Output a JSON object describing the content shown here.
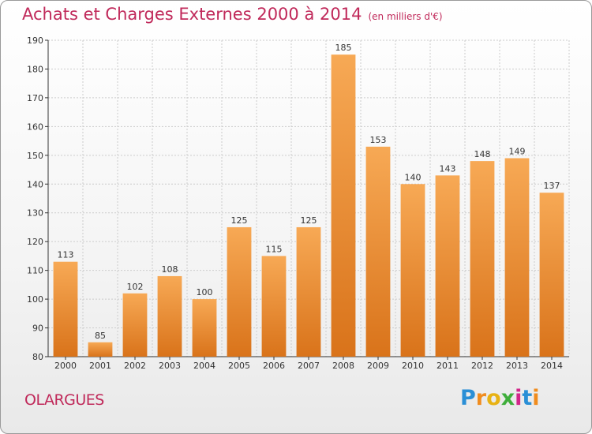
{
  "header": {
    "title": "Achats et Charges Externes 2000 à 2014",
    "subtitle": "(en milliers d'€)"
  },
  "footer": {
    "city": "OLARGUES",
    "logo_text": "Proxiti",
    "logo_letters": [
      {
        "ch": "P",
        "color": "#2a8fd6"
      },
      {
        "ch": "r",
        "color": "#f08c1e"
      },
      {
        "ch": "o",
        "color": "#e8b214"
      },
      {
        "ch": "x",
        "color": "#3fae3b"
      },
      {
        "ch": "i",
        "color": "#d3268a"
      },
      {
        "ch": "t",
        "color": "#2a8fd6"
      },
      {
        "ch": "i",
        "color": "#f08c1e"
      }
    ]
  },
  "colors": {
    "bar_top": "#f7a955",
    "bar_bottom": "#d9731a",
    "grid": "#cccccc",
    "axis": "#333333",
    "accent": "#c0295a"
  },
  "chart_data": {
    "type": "bar",
    "title": "Achats et Charges Externes 2000 à 2014",
    "subtitle": "(en milliers d'€)",
    "xlabel": "",
    "ylabel": "",
    "ylim": [
      80,
      190
    ],
    "yticks": [
      80,
      90,
      100,
      110,
      120,
      130,
      140,
      150,
      160,
      170,
      180,
      190
    ],
    "grid": true,
    "categories": [
      "2000",
      "2001",
      "2002",
      "2003",
      "2004",
      "2005",
      "2006",
      "2007",
      "2008",
      "2009",
      "2010",
      "2011",
      "2012",
      "2013",
      "2014"
    ],
    "values": [
      113,
      85,
      102,
      108,
      100,
      125,
      115,
      125,
      185,
      153,
      140,
      143,
      148,
      149,
      137
    ]
  }
}
